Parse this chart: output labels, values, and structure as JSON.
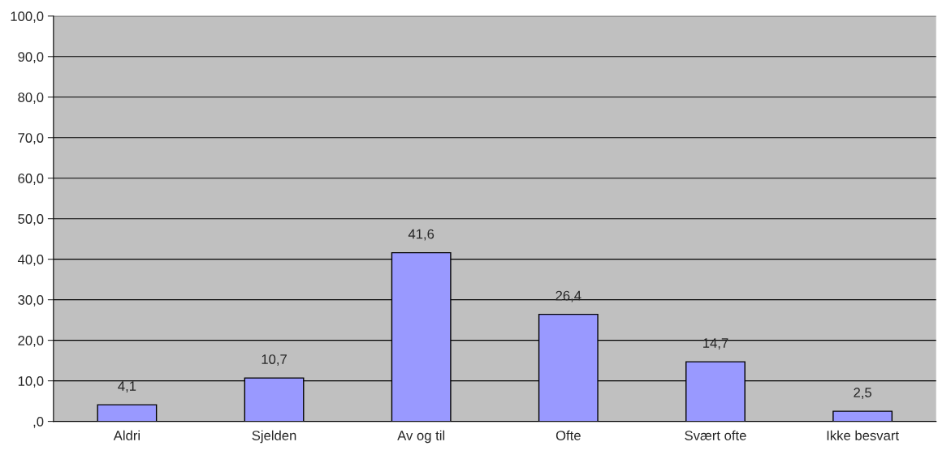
{
  "chart_data": {
    "type": "bar",
    "categories": [
      "Aldri",
      "Sjelden",
      "Av og til",
      "Ofte",
      "Svært ofte",
      "Ikke besvart"
    ],
    "values": [
      4.1,
      10.7,
      41.6,
      26.4,
      14.7,
      2.5
    ],
    "value_labels": [
      "4,1",
      "10,7",
      "41,6",
      "26,4",
      "14,7",
      "2,5"
    ],
    "color": "#9999ff",
    "ylim": [
      0,
      100
    ],
    "yticks": [
      {
        "value": 0,
        "label": ",0"
      },
      {
        "value": 10,
        "label": "10,0"
      },
      {
        "value": 20,
        "label": "20,0"
      },
      {
        "value": 30,
        "label": "30,0"
      },
      {
        "value": 40,
        "label": "40,0"
      },
      {
        "value": 50,
        "label": "50,0"
      },
      {
        "value": 60,
        "label": "60,0"
      },
      {
        "value": 70,
        "label": "70,0"
      },
      {
        "value": 80,
        "label": "80,0"
      },
      {
        "value": 90,
        "label": "90,0"
      },
      {
        "value": 100,
        "label": "100,0"
      }
    ],
    "grid": "y"
  }
}
